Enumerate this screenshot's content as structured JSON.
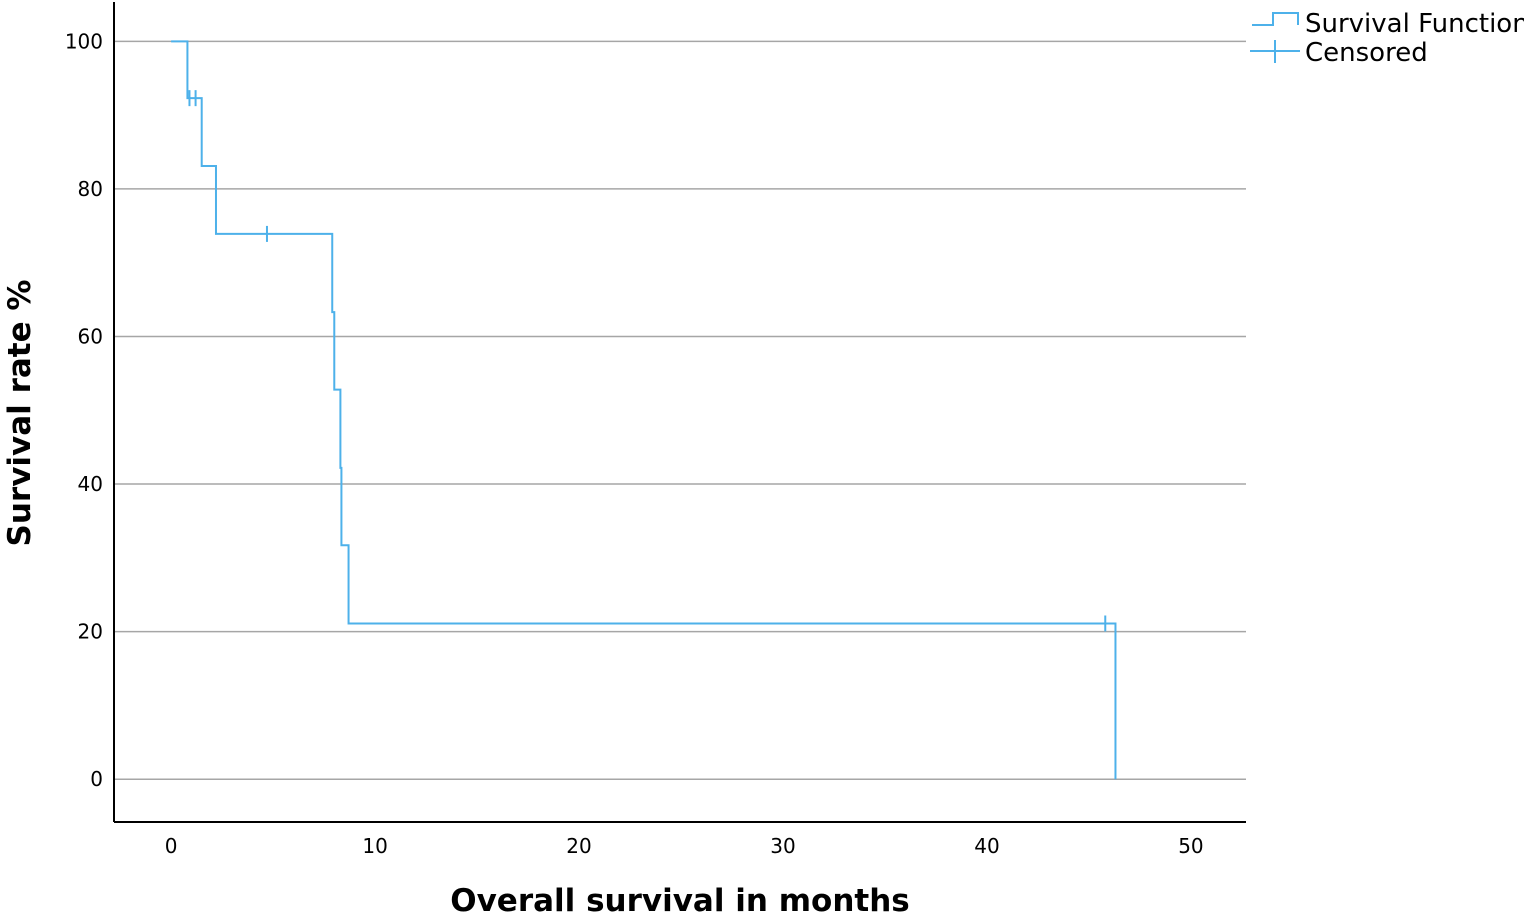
{
  "colors": {
    "series": "#4db1ea",
    "grid": "#a6a6a6",
    "axis": "#000000"
  },
  "legend": {
    "placement": "top-right",
    "items": [
      {
        "label": "Survival Function",
        "symbol": "step-line"
      },
      {
        "label": "Censored",
        "symbol": "plus"
      }
    ]
  },
  "chart_data": {
    "type": "line",
    "subtype": "kaplan-meier-step",
    "title": "",
    "xlabel": "Overall survival in months",
    "ylabel": "Survival rate %",
    "xlim": [
      -2.8,
      52.7
    ],
    "ylim": [
      -5.8,
      105.6
    ],
    "xticks": [
      0,
      10,
      20,
      30,
      40,
      50
    ],
    "yticks": [
      0,
      20,
      40,
      60,
      80,
      100
    ],
    "grid": "horizontal",
    "series": [
      {
        "name": "Survival Function",
        "steps": [
          {
            "t": 0.0,
            "s": 100.0
          },
          {
            "t": 0.8,
            "s": 92.3
          },
          {
            "t": 1.5,
            "s": 83.1
          },
          {
            "t": 2.2,
            "s": 73.9
          },
          {
            "t": 7.9,
            "s": 63.3
          },
          {
            "t": 8.0,
            "s": 52.8
          },
          {
            "t": 8.3,
            "s": 42.2
          },
          {
            "t": 8.35,
            "s": 31.7
          },
          {
            "t": 8.7,
            "s": 21.1
          },
          {
            "t": 46.3,
            "s": 0.0
          }
        ]
      },
      {
        "name": "Censored",
        "points": [
          {
            "t": 0.9,
            "s": 92.3
          },
          {
            "t": 1.2,
            "s": 92.3
          },
          {
            "t": 4.7,
            "s": 73.9
          },
          {
            "t": 45.8,
            "s": 21.1
          }
        ]
      }
    ]
  }
}
